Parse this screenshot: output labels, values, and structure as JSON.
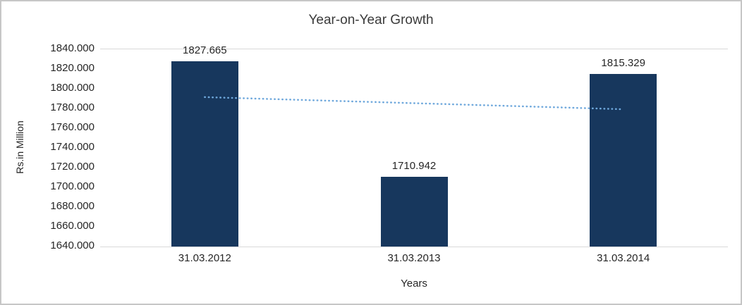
{
  "chart_data": {
    "type": "bar",
    "title": "Year-on-Year Growth",
    "categories": [
      "31.03.2012",
      "31.03.2013",
      "31.03.2014"
    ],
    "values": [
      1827.665,
      1710.942,
      1815.329
    ],
    "data_labels": [
      "1827.665",
      "1710.942",
      "1815.329"
    ],
    "xlabel": "Years",
    "ylabel": "Rs.in Million",
    "ylim": [
      1640,
      1840
    ],
    "ytick_step": 20,
    "ytick_labels": [
      "1840.000",
      "1820.000",
      "1800.000",
      "1780.000",
      "1760.000",
      "1740.000",
      "1720.000",
      "1700.000",
      "1680.000",
      "1660.000",
      "1640.000"
    ],
    "grid": "horizontal gridline at top tick and baseline only",
    "legend": "none",
    "bar_color": "#17375D",
    "trendline": {
      "type": "linear",
      "style": "dotted",
      "color": "#6FA8DC",
      "start_value": 1790.8,
      "end_value": 1778.5
    }
  }
}
